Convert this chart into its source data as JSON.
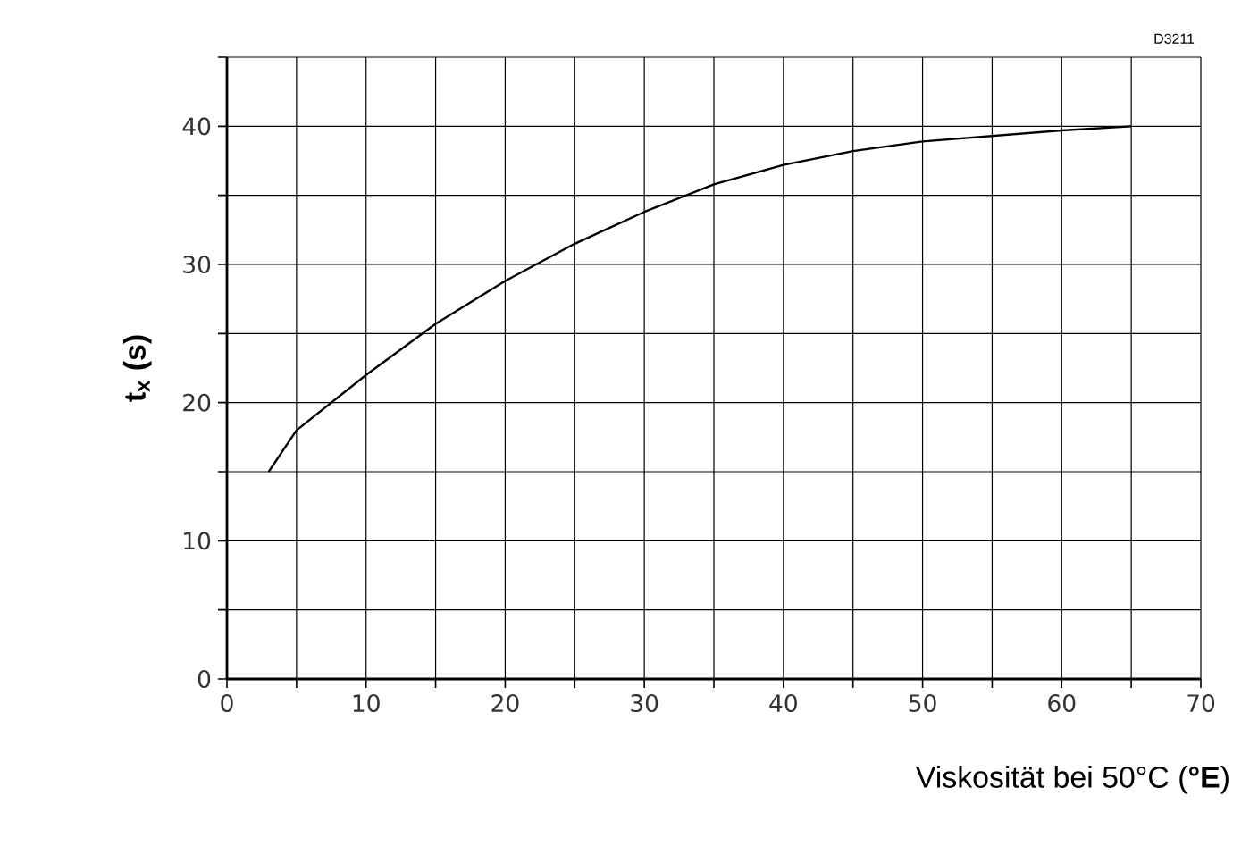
{
  "chart_data": {
    "type": "line",
    "xlabel": "Viskosität bei 50°C (**°E**)",
    "ylabel": "t$_{x}$ (s)",
    "annotations": [
      "D3211"
    ],
    "x": [
      3,
      5,
      10,
      15,
      20,
      25,
      30,
      35,
      40,
      45,
      50,
      55,
      60,
      65
    ],
    "values": [
      15,
      18,
      22,
      25.7,
      28.8,
      31.5,
      33.8,
      35.8,
      37.2,
      38.2,
      38.9,
      39.3,
      39.7,
      40
    ],
    "color": "#000000",
    "marker": "none",
    "line_style": "solid",
    "xlim": [
      0,
      70
    ],
    "ylim": [
      0,
      45
    ],
    "xticks": [
      0,
      {
        "value": 5,
        "label": null
      },
      10,
      {
        "value": 15,
        "label": null
      },
      20,
      {
        "value": 25,
        "label": null
      },
      30,
      {
        "value": 35,
        "label": null
      },
      40,
      {
        "value": 45,
        "label": null
      },
      50,
      {
        "value": 55,
        "label": null
      },
      60,
      {
        "value": 65,
        "label": null
      },
      70
    ],
    "yticks": [
      0,
      {
        "value": 5,
        "label": null
      },
      10,
      {
        "value": 15,
        "label": null
      },
      20,
      {
        "value": 25,
        "label": null
      },
      30,
      {
        "value": 35,
        "label": null
      },
      40,
      {
        "value": 45,
        "label": null
      }
    ],
    "grid": true
  }
}
